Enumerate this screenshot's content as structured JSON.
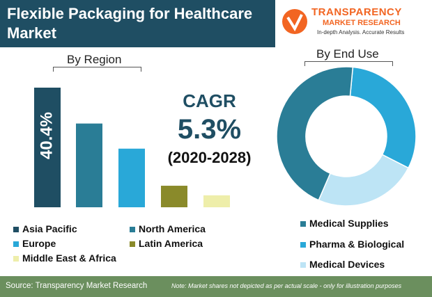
{
  "header": {
    "title": "Flexible Packaging for Healthcare Market"
  },
  "logo": {
    "name": "TRANSPARENCY",
    "sub": "MARKET RESEARCH",
    "tagline": "In-depth Analysis. Accurate Results"
  },
  "chart_data": [
    {
      "type": "bar",
      "title": "By Region",
      "categories": [
        "Asia Pacific",
        "North America",
        "Europe",
        "Latin America",
        "Middle East & Africa"
      ],
      "values": [
        100,
        70,
        49,
        18,
        10
      ],
      "colors": [
        "#1f4e63",
        "#2a7d96",
        "#29a8d8",
        "#8a8a2a",
        "#eeeeaa"
      ],
      "data_label": "40.4%",
      "note": "relative bar heights estimated; shares not to scale"
    },
    {
      "type": "pie",
      "title": "By End Use",
      "categories": [
        "Medical Supplies",
        "Pharma & Biological",
        "Medical Devices"
      ],
      "values": [
        45,
        31,
        24
      ],
      "colors": [
        "#2a7d96",
        "#29a8d8",
        "#bde4f5"
      ]
    }
  ],
  "cagr": {
    "label": "CAGR",
    "value": "5.3%",
    "years": "(2020-2028)"
  },
  "footer": {
    "source": "Source: Transparency Market Research",
    "note": "Note: Market shares not depicted as per actual scale - only for illustration purposes"
  }
}
